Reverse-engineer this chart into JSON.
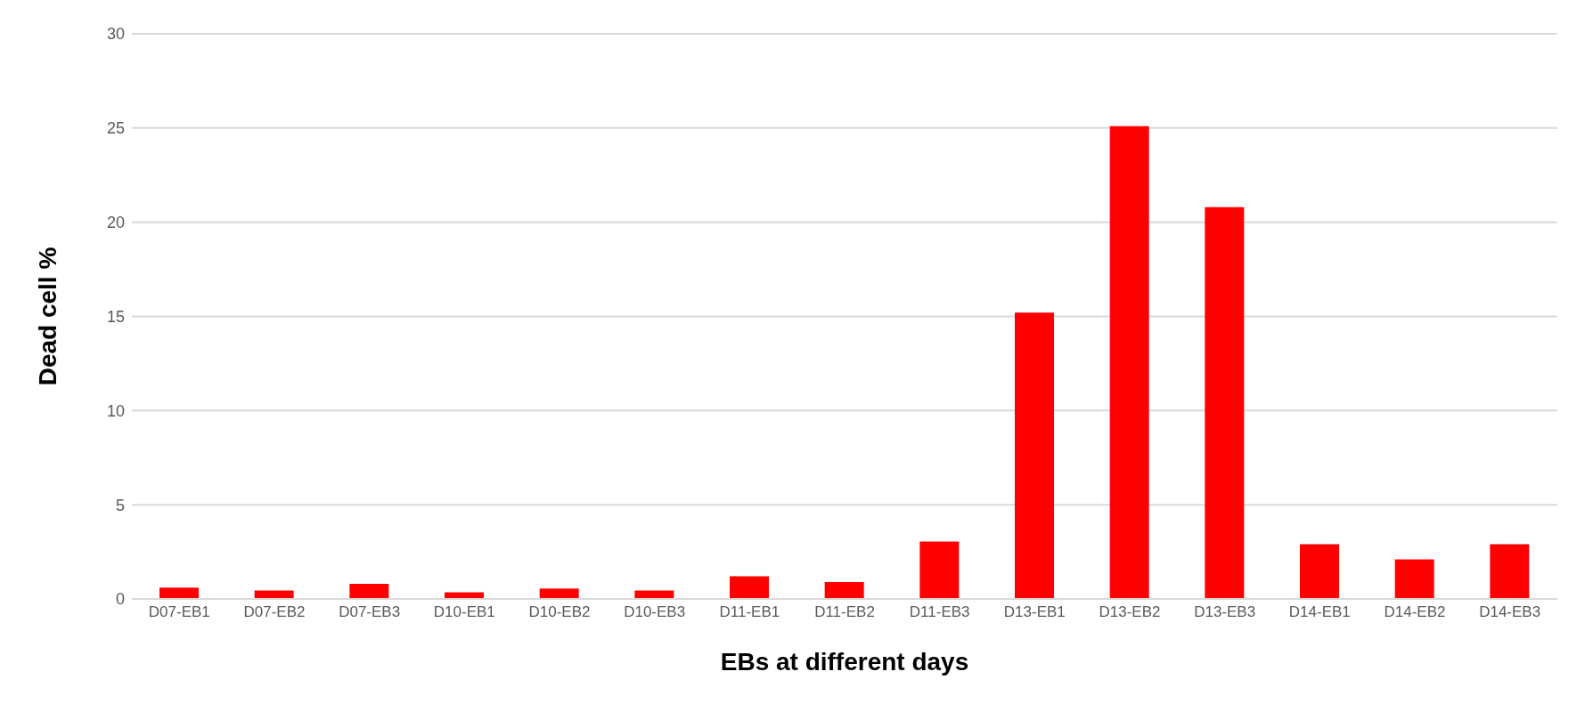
{
  "chart_data": {
    "type": "bar",
    "xlabel": "EBs at different days",
    "ylabel": "Dead cell %",
    "categories": [
      "D07-EB1",
      "D07-EB2",
      "D07-EB3",
      "D10-EB1",
      "D10-EB2",
      "D10-EB3",
      "D11-EB1",
      "D11-EB2",
      "D11-EB3",
      "D13-EB1",
      "D13-EB2",
      "D13-EB3",
      "D14-EB1",
      "D14-EB2",
      "D14-EB3"
    ],
    "values": [
      0.6,
      0.45,
      0.8,
      0.35,
      0.55,
      0.45,
      1.2,
      0.9,
      3.05,
      15.2,
      25.1,
      20.8,
      2.9,
      2.1,
      2.9
    ],
    "color": "#ff0000",
    "ylim": [
      0,
      30
    ],
    "yticks": [
      0,
      5,
      10,
      15,
      20,
      25,
      30
    ],
    "grid": "y"
  }
}
